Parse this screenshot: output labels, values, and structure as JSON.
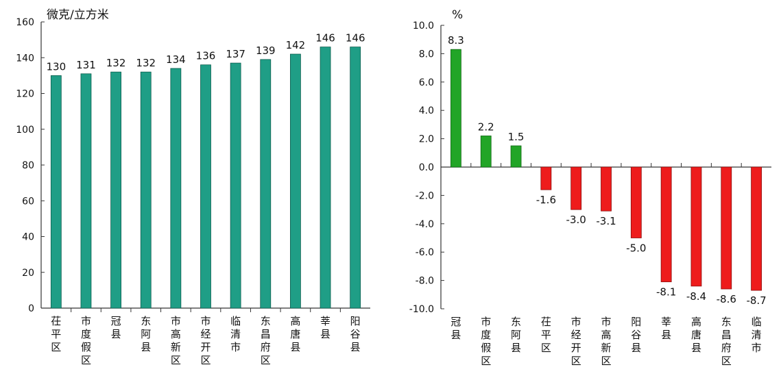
{
  "chart_data": [
    {
      "type": "bar",
      "title": "",
      "ylabel": "微克/立方米",
      "xlabel": "",
      "ylim": [
        0,
        160
      ],
      "yticks": [
        0,
        20,
        40,
        60,
        80,
        100,
        120,
        140,
        160
      ],
      "grid": false,
      "bar_color": "#1f9e86",
      "categories": [
        "茌平区",
        "市度假区",
        "冠县",
        "东阿县",
        "市高新区",
        "市经开区",
        "临清市",
        "东昌府区",
        "高唐县",
        "莘县",
        "阳谷县"
      ],
      "values": [
        130,
        131,
        132,
        132,
        134,
        136,
        137,
        139,
        142,
        146,
        146
      ],
      "value_labels": [
        "130",
        "131",
        "132",
        "132",
        "134",
        "136",
        "137",
        "139",
        "142",
        "146",
        "146"
      ]
    },
    {
      "type": "bar",
      "title": "",
      "ylabel": "%",
      "xlabel": "",
      "ylim": [
        -10,
        10
      ],
      "yticks": [
        -10,
        -8,
        -6,
        -4,
        -2,
        0,
        2,
        4,
        6,
        8,
        10
      ],
      "ytick_labels": [
        "-10.0",
        "-8.0",
        "-6.0",
        "-4.0",
        "-2.0",
        "0.0",
        "2.0",
        "4.0",
        "6.0",
        "8.0",
        "10.0"
      ],
      "grid": false,
      "positive_color": "#22a527",
      "negative_color": "#ee1c1c",
      "categories": [
        "冠县",
        "市度假区",
        "东阿县",
        "茌平区",
        "市经开区",
        "市高新区",
        "阳谷县",
        "莘县",
        "高唐县",
        "东昌府区",
        "临清市"
      ],
      "values": [
        8.3,
        2.2,
        1.5,
        -1.6,
        -3.0,
        -3.1,
        -5.0,
        -8.1,
        -8.4,
        -8.6,
        -8.7
      ],
      "value_labels": [
        "8.3",
        "2.2",
        "1.5",
        "-1.6",
        "-3.0",
        "-3.1",
        "-5.0",
        "-8.1",
        "-8.4",
        "-8.6",
        "-8.7"
      ]
    }
  ]
}
